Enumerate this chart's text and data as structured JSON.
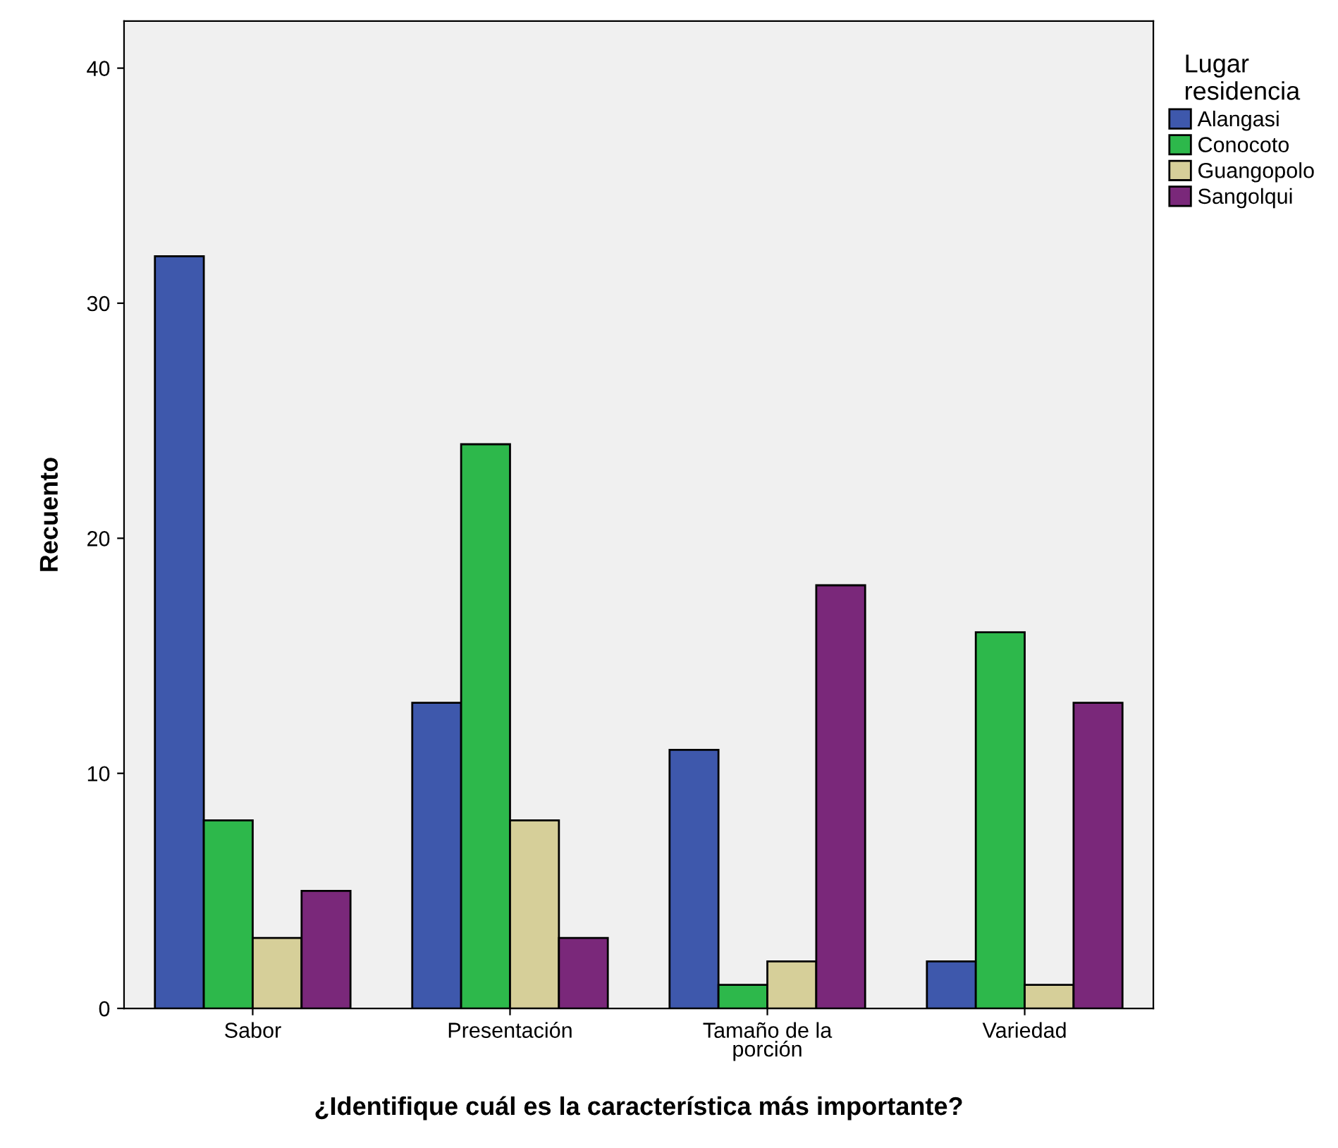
{
  "chart_data": {
    "type": "bar",
    "xlabel": "¿Identifique cuál es la característica más importante?",
    "ylabel": "Recuento",
    "legend_title": "Lugar\nresidencia",
    "categories": [
      "Sabor",
      "Presentación",
      "Tamaño de la\nporción",
      "Variedad"
    ],
    "series": [
      {
        "name": "Alangasi",
        "color": "#3e58ac",
        "values": [
          32,
          13,
          11,
          2
        ]
      },
      {
        "name": "Conocoto",
        "color": "#2db84b",
        "values": [
          8,
          24,
          1,
          16
        ]
      },
      {
        "name": "Guangopolo",
        "color": "#d6cf99",
        "values": [
          3,
          8,
          2,
          1
        ]
      },
      {
        "name": "Sangolqui",
        "color": "#7a287a",
        "values": [
          5,
          3,
          18,
          13
        ]
      }
    ],
    "ylim": [
      0,
      42
    ],
    "yticks": [
      0,
      10,
      20,
      30,
      40
    ],
    "grid": false,
    "legend": "right"
  }
}
